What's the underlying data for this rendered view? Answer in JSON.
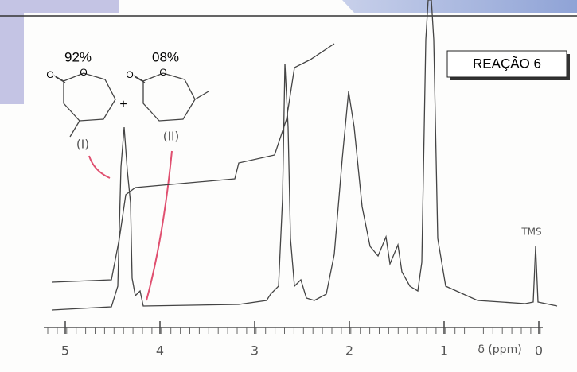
{
  "labels": {
    "yield_1": "92%",
    "yield_2": "08%",
    "compound_1": "(I)",
    "compound_2": "(II)",
    "plus": "+",
    "reaction": "REAÇÃO 6",
    "reference": "TMS"
  },
  "axis": {
    "label": "δ (ppm)",
    "ticks": [
      5,
      4,
      3,
      2,
      1,
      0
    ]
  }
}
